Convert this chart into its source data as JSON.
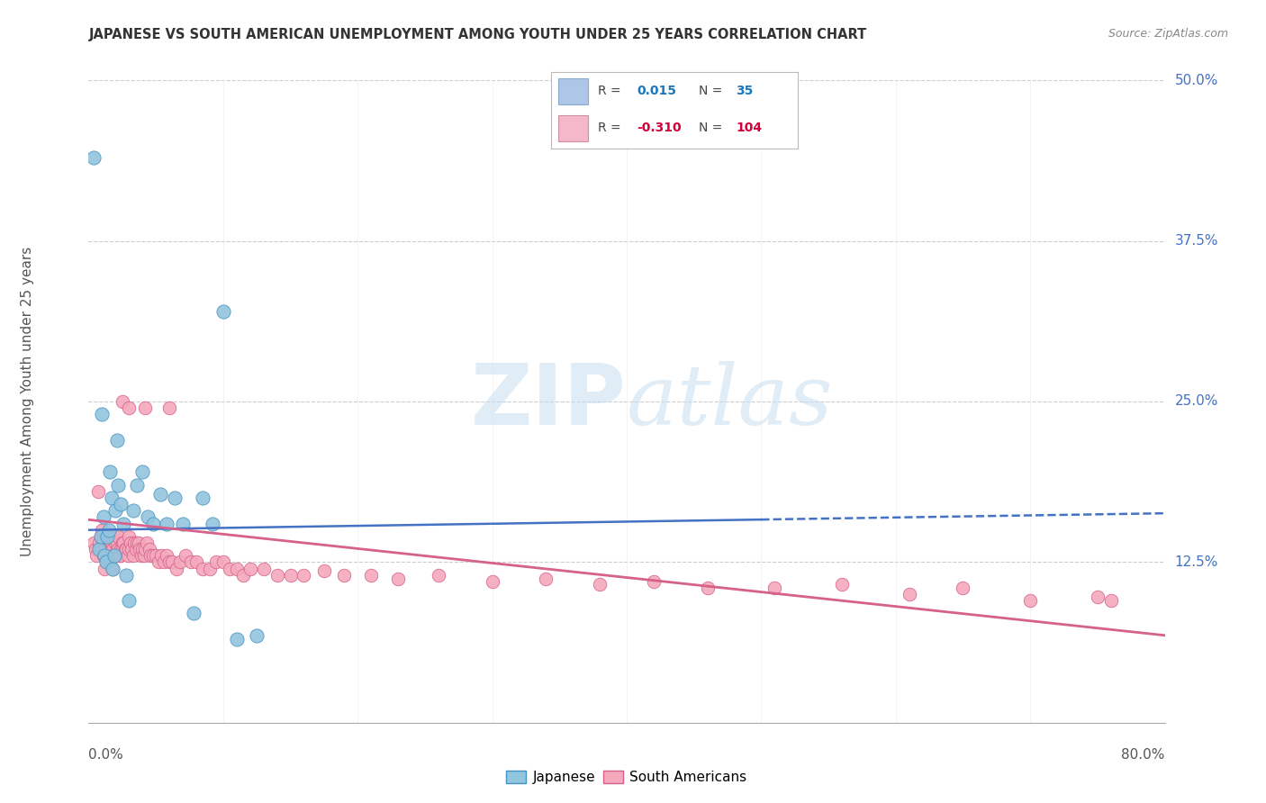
{
  "title": "JAPANESE VS SOUTH AMERICAN UNEMPLOYMENT AMONG YOUTH UNDER 25 YEARS CORRELATION CHART",
  "source": "Source: ZipAtlas.com",
  "ylabel": "Unemployment Among Youth under 25 years",
  "xlim": [
    0.0,
    0.8
  ],
  "ylim": [
    0.0,
    0.5
  ],
  "watermark_zip": "ZIP",
  "watermark_atlas": "atlas",
  "ytick_positions": [
    0.125,
    0.25,
    0.375,
    0.5
  ],
  "ytick_labels": [
    "12.5%",
    "25.0%",
    "37.5%",
    "50.0%"
  ],
  "japanese_color": "#92c5de",
  "japanese_edge": "#4393c3",
  "sa_color": "#f4a9bc",
  "sa_edge": "#d6618a",
  "trend_japanese_color": "#4472c4",
  "trend_sa_color": "#d6618a",
  "background_color": "#ffffff",
  "grid_color": "#cccccc",
  "R_jp": 0.015,
  "N_jp": 35,
  "R_sa": -0.31,
  "N_sa": 104,
  "jp_trend_y0": 0.15,
  "jp_trend_y1": 0.163,
  "jp_trend_solid_end": 0.5,
  "sa_trend_y0": 0.158,
  "sa_trend_y1": 0.068,
  "legend_box_color": "#aec6e8",
  "legend_box_color2": "#f4b8c8",
  "legend_R_color": "#1a78bf",
  "legend_R_color2": "#d4003c",
  "japanese_x": [
    0.004,
    0.008,
    0.009,
    0.01,
    0.011,
    0.012,
    0.013,
    0.014,
    0.015,
    0.016,
    0.017,
    0.018,
    0.019,
    0.02,
    0.021,
    0.022,
    0.024,
    0.026,
    0.028,
    0.03,
    0.033,
    0.036,
    0.04,
    0.044,
    0.048,
    0.053,
    0.058,
    0.064,
    0.07,
    0.078,
    0.085,
    0.092,
    0.1,
    0.11,
    0.125
  ],
  "japanese_y": [
    0.44,
    0.135,
    0.145,
    0.24,
    0.16,
    0.13,
    0.125,
    0.145,
    0.15,
    0.195,
    0.175,
    0.12,
    0.13,
    0.165,
    0.22,
    0.185,
    0.17,
    0.155,
    0.115,
    0.095,
    0.165,
    0.185,
    0.195,
    0.16,
    0.155,
    0.178,
    0.155,
    0.175,
    0.155,
    0.085,
    0.175,
    0.155,
    0.32,
    0.065,
    0.068
  ],
  "sa_x": [
    0.004,
    0.005,
    0.006,
    0.007,
    0.008,
    0.009,
    0.01,
    0.01,
    0.011,
    0.011,
    0.012,
    0.012,
    0.013,
    0.013,
    0.014,
    0.014,
    0.015,
    0.015,
    0.016,
    0.016,
    0.017,
    0.017,
    0.018,
    0.018,
    0.019,
    0.019,
    0.02,
    0.02,
    0.021,
    0.021,
    0.022,
    0.022,
    0.023,
    0.023,
    0.024,
    0.025,
    0.025,
    0.026,
    0.027,
    0.028,
    0.029,
    0.03,
    0.03,
    0.031,
    0.032,
    0.033,
    0.034,
    0.035,
    0.036,
    0.037,
    0.038,
    0.039,
    0.04,
    0.041,
    0.042,
    0.043,
    0.045,
    0.046,
    0.048,
    0.05,
    0.052,
    0.054,
    0.056,
    0.058,
    0.06,
    0.062,
    0.065,
    0.068,
    0.072,
    0.076,
    0.08,
    0.085,
    0.09,
    0.095,
    0.1,
    0.105,
    0.11,
    0.115,
    0.12,
    0.13,
    0.14,
    0.15,
    0.16,
    0.175,
    0.19,
    0.21,
    0.23,
    0.26,
    0.3,
    0.34,
    0.38,
    0.42,
    0.46,
    0.51,
    0.56,
    0.61,
    0.65,
    0.7,
    0.75,
    0.76,
    0.025,
    0.03,
    0.042,
    0.06
  ],
  "sa_y": [
    0.14,
    0.135,
    0.13,
    0.18,
    0.14,
    0.145,
    0.15,
    0.135,
    0.14,
    0.13,
    0.135,
    0.12,
    0.13,
    0.145,
    0.13,
    0.125,
    0.14,
    0.135,
    0.145,
    0.125,
    0.13,
    0.14,
    0.135,
    0.12,
    0.13,
    0.145,
    0.14,
    0.13,
    0.135,
    0.14,
    0.135,
    0.145,
    0.13,
    0.13,
    0.135,
    0.14,
    0.135,
    0.14,
    0.135,
    0.135,
    0.13,
    0.145,
    0.135,
    0.14,
    0.135,
    0.13,
    0.14,
    0.135,
    0.14,
    0.14,
    0.135,
    0.13,
    0.135,
    0.13,
    0.135,
    0.14,
    0.135,
    0.13,
    0.13,
    0.13,
    0.125,
    0.13,
    0.125,
    0.13,
    0.125,
    0.125,
    0.12,
    0.125,
    0.13,
    0.125,
    0.125,
    0.12,
    0.12,
    0.125,
    0.125,
    0.12,
    0.12,
    0.115,
    0.12,
    0.12,
    0.115,
    0.115,
    0.115,
    0.118,
    0.115,
    0.115,
    0.112,
    0.115,
    0.11,
    0.112,
    0.108,
    0.11,
    0.105,
    0.105,
    0.108,
    0.1,
    0.105,
    0.095,
    0.098,
    0.095,
    0.25,
    0.245,
    0.245,
    0.245
  ]
}
